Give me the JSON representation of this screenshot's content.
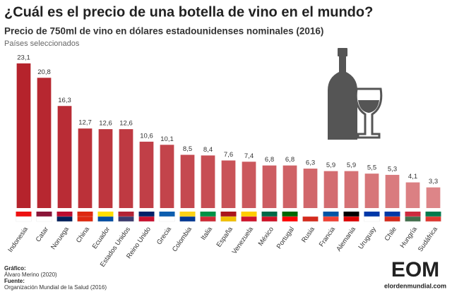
{
  "chart_data": {
    "type": "bar",
    "title": "¿Cuál es el precio de una botella de vino en el mundo?",
    "subtitle": "Precio de 750ml de vino en dólares estadounidenses nominales (2016)",
    "note": "Países seleccionados",
    "categories": [
      "Indonesia",
      "Catar",
      "Noruega",
      "China",
      "Ecuador",
      "Estados Unidos",
      "Reino Unido",
      "Grecia",
      "Colombia",
      "Italia",
      "España",
      "Venezuela",
      "México",
      "Portugal",
      "Rusia",
      "Francia",
      "Alemania",
      "Uruguay",
      "Chile",
      "Hungría",
      "Sudáfrica"
    ],
    "values": [
      23.1,
      20.8,
      16.3,
      12.7,
      12.6,
      12.6,
      10.6,
      10.1,
      8.5,
      8.4,
      7.6,
      7.4,
      6.8,
      6.8,
      6.3,
      5.9,
      5.9,
      5.5,
      5.3,
      4.1,
      3.3
    ],
    "value_labels": [
      "23,1",
      "20,8",
      "16,3",
      "12,7",
      "12,6",
      "12,6",
      "10,6",
      "10,1",
      "8,5",
      "8,4",
      "7,6",
      "7,4",
      "6,8",
      "6,8",
      "6,3",
      "5,9",
      "5,9",
      "5,5",
      "5,3",
      "4,1",
      "3,3"
    ],
    "colors": [
      "#b5232c",
      "#b72730",
      "#b92c35",
      "#bb3139",
      "#bd363e",
      "#bf3a42",
      "#c13f47",
      "#c3444b",
      "#c54950",
      "#c74e54",
      "#c95358",
      "#cb585d",
      "#cd5d62",
      "#cf6266",
      "#d1676b",
      "#d36c70",
      "#d57174",
      "#d77679",
      "#d97b7e",
      "#db8083",
      "#dd8588"
    ],
    "ylim": [
      0,
      25
    ],
    "credits": {
      "graphic_label": "Gráfico:",
      "graphic": "Álvaro Merino (2020)",
      "source_label": "Fuente:",
      "source": "Organización Mundial de la Salud (2016)",
      "logo": "EOM",
      "site": "elordenmundial.com"
    }
  }
}
